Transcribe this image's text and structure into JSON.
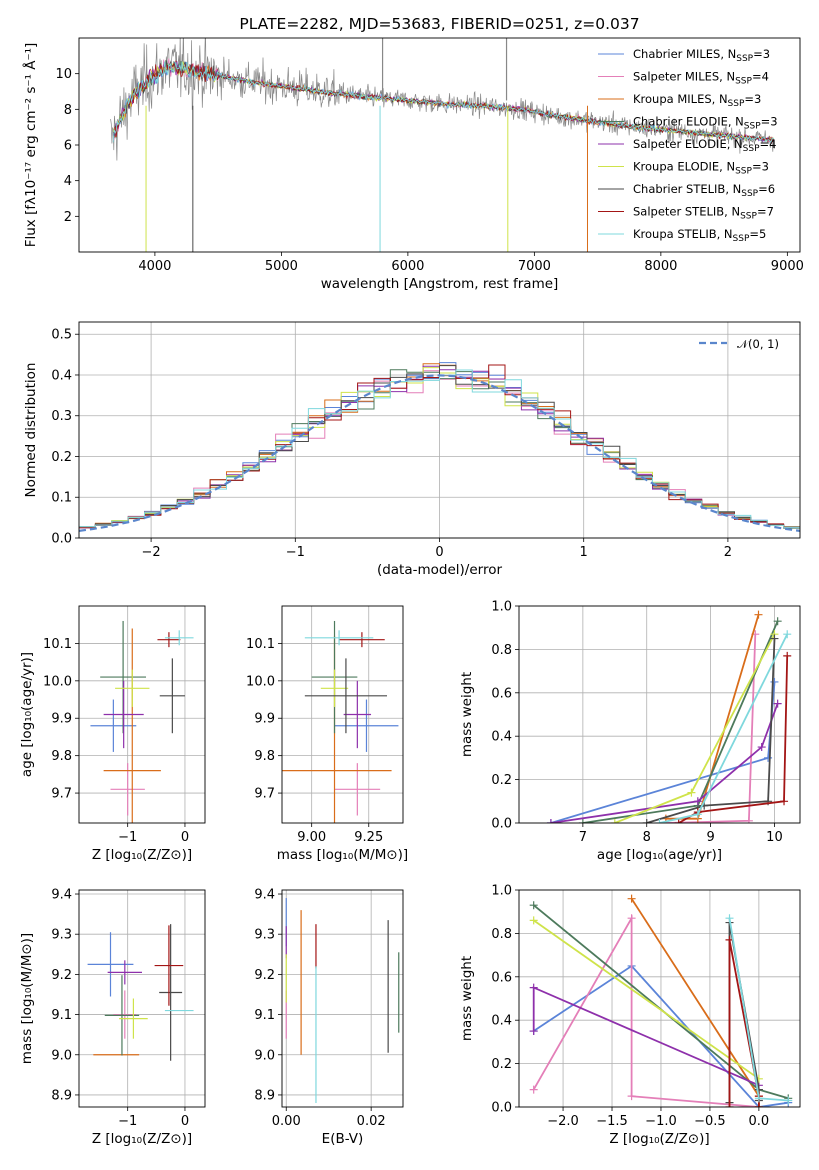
{
  "colors": {
    "series": [
      "#5b84d8",
      "#e47fb8",
      "#d96d1a",
      "#4d7a5c",
      "#8e30ab",
      "#cfe34a",
      "#4a4a4a",
      "#a31515",
      "#7fd8dd"
    ],
    "data": "#888888",
    "normal": "#5a86cc",
    "grid": "#b0b0b0"
  },
  "chart_data": [
    {
      "id": "spectrum",
      "type": "line",
      "title": "PLATE=2282, MJD=53683, FIBERID=0251, z=0.037",
      "xlabel": "wavelength [Angstrom, rest frame]",
      "ylabel": "Flux [fλ10⁻¹⁷ erg cm⁻² s⁻¹ Å⁻¹]",
      "xlim": [
        3400,
        9100
      ],
      "ylim": [
        0,
        12
      ],
      "xticks": [
        4000,
        5000,
        6000,
        7000,
        8000,
        9000
      ],
      "yticks": [
        2,
        4,
        6,
        8,
        10
      ],
      "grid": false,
      "legend_position": "top-right",
      "data_range": [
        3650,
        8900
      ],
      "continuum": [
        [
          3650,
          6.2
        ],
        [
          3800,
          8.5
        ],
        [
          3950,
          9.7
        ],
        [
          4100,
          10.4
        ],
        [
          4300,
          10.2
        ],
        [
          4500,
          9.9
        ],
        [
          4800,
          9.5
        ],
        [
          5100,
          9.2
        ],
        [
          5400,
          8.9
        ],
        [
          5700,
          8.7
        ],
        [
          6000,
          8.5
        ],
        [
          6300,
          8.3
        ],
        [
          6600,
          8.2
        ],
        [
          6900,
          8.0
        ],
        [
          7200,
          7.6
        ],
        [
          7500,
          7.3
        ],
        [
          7800,
          7.0
        ],
        [
          8100,
          6.8
        ],
        [
          8400,
          6.6
        ],
        [
          8700,
          6.4
        ],
        [
          8900,
          6.3
        ]
      ],
      "series": [
        {
          "name": "Chabrier MILES, N_SSP=3",
          "label_main": "Chabrier MILES, N",
          "label_sub": "SSP",
          "label_tail": "=3"
        },
        {
          "name": "Salpeter MILES, N_SSP=4",
          "label_main": "Salpeter MILES, N",
          "label_sub": "SSP",
          "label_tail": "=4"
        },
        {
          "name": "Kroupa MILES, N_SSP=3",
          "label_main": "Kroupa MILES, N",
          "label_sub": "SSP",
          "label_tail": "=3"
        },
        {
          "name": "Chabrier ELODIE, N_SSP=3",
          "label_main": "Chabrier ELODIE, N",
          "label_sub": "SSP",
          "label_tail": "=3"
        },
        {
          "name": "Salpeter ELODIE, N_SSP=4",
          "label_main": "Salpeter ELODIE, N",
          "label_sub": "SSP",
          "label_tail": "=4"
        },
        {
          "name": "Kroupa ELODIE, N_SSP=3",
          "label_main": "Kroupa ELODIE, N",
          "label_sub": "SSP",
          "label_tail": "=3"
        },
        {
          "name": "Chabrier STELIB, N_SSP=6",
          "label_main": "Chabrier STELIB, N",
          "label_sub": "SSP",
          "label_tail": "=6"
        },
        {
          "name": "Salpeter STELIB, N_SSP=7",
          "label_main": "Salpeter STELIB, N",
          "label_sub": "SSP",
          "label_tail": "=7"
        },
        {
          "name": "Kroupa STELIB, N_SSP=5",
          "label_main": "Kroupa STELIB, N",
          "label_sub": "SSP",
          "label_tail": "=5"
        }
      ]
    },
    {
      "id": "residuals",
      "type": "step-histogram",
      "xlabel": "(data-model)/error",
      "ylabel": "Normed distribution",
      "xlim": [
        -2.5,
        2.5
      ],
      "ylim": [
        0,
        0.53
      ],
      "xticks": [
        -2,
        -1,
        0,
        1,
        2
      ],
      "xtick_labels": [
        "−2",
        "−1",
        "0",
        "1",
        "2"
      ],
      "yticks": [
        0.0,
        0.1,
        0.2,
        0.3,
        0.4,
        0.5
      ],
      "ytick_labels": [
        "0.0",
        "0.1",
        "0.2",
        "0.3",
        "0.4",
        "0.5"
      ],
      "grid": true,
      "legend_position": "top-right",
      "normal_label": "𝒩(0, 1)",
      "bin_edges_range": [
        -2.5,
        2.5
      ],
      "n_bins": 44
    },
    {
      "id": "age-vs-z",
      "type": "errorbar",
      "xlabel": "Z [log₁₀(Z/Z⊙)]",
      "ylabel": "age  [log₁₀(age/yr)]",
      "xlim": [
        -1.85,
        0.35
      ],
      "ylim": [
        9.62,
        10.2
      ],
      "xticks": [
        -1,
        0
      ],
      "xtick_labels": [
        "−1",
        "0"
      ],
      "yticks": [
        9.7,
        9.8,
        9.9,
        10.0,
        10.1
      ],
      "ytick_labels": [
        "9.7",
        "9.8",
        "9.9",
        "10.0",
        "10.1"
      ],
      "grid": true,
      "points": [
        {
          "x": -1.25,
          "y": 9.88,
          "xerr": 0.4,
          "yerr": 0.07
        },
        {
          "x": -1.0,
          "y": 9.71,
          "xerr": 0.3,
          "yerr": 0.07
        },
        {
          "x": -0.92,
          "y": 9.76,
          "xerr": 0.5,
          "yerr": 0.38
        },
        {
          "x": -1.08,
          "y": 10.01,
          "xerr": 0.4,
          "yerr": 0.15
        },
        {
          "x": -1.07,
          "y": 9.91,
          "xerr": 0.35,
          "yerr": 0.09
        },
        {
          "x": -0.92,
          "y": 9.98,
          "xerr": 0.3,
          "yerr": 0.05
        },
        {
          "x": -0.22,
          "y": 9.96,
          "xerr": 0.22,
          "yerr": 0.1
        },
        {
          "x": -0.28,
          "y": 10.11,
          "xerr": 0.2,
          "yerr": 0.02
        },
        {
          "x": -0.1,
          "y": 10.115,
          "xerr": 0.25,
          "yerr": 0.02
        }
      ]
    },
    {
      "id": "age-vs-mass",
      "type": "errorbar",
      "xlabel": "mass [log₁₀(M/M⊙)]",
      "ylabel": "",
      "xlim": [
        8.87,
        9.4
      ],
      "ylim": [
        9.62,
        10.2
      ],
      "xticks": [
        9.0,
        9.25
      ],
      "xtick_labels": [
        "9.00",
        "9.25"
      ],
      "yticks": [
        9.7,
        9.8,
        9.9,
        10.0,
        10.1
      ],
      "ytick_labels": [
        "9.7",
        "9.8",
        "9.9",
        "10.0",
        "10.1"
      ],
      "grid": true,
      "points": [
        {
          "x": 9.24,
          "y": 9.88,
          "xerr": 0.14,
          "yerr": 0.07
        },
        {
          "x": 9.2,
          "y": 9.71,
          "xerr": 0.1,
          "yerr": 0.07
        },
        {
          "x": 9.1,
          "y": 9.76,
          "xerr": 0.25,
          "yerr": 0.36
        },
        {
          "x": 9.1,
          "y": 10.01,
          "xerr": 0.1,
          "yerr": 0.15
        },
        {
          "x": 9.2,
          "y": 9.91,
          "xerr": 0.06,
          "yerr": 0.09
        },
        {
          "x": 9.1,
          "y": 9.98,
          "xerr": 0.06,
          "yerr": 0.05
        },
        {
          "x": 9.15,
          "y": 9.96,
          "xerr": 0.18,
          "yerr": 0.1
        },
        {
          "x": 9.22,
          "y": 10.11,
          "xerr": 0.1,
          "yerr": 0.02
        },
        {
          "x": 9.12,
          "y": 10.115,
          "xerr": 0.15,
          "yerr": 0.02
        }
      ]
    },
    {
      "id": "mass-weight-vs-age",
      "type": "line",
      "xlabel": "age  [log₁₀(age/yr)]",
      "ylabel": "mass weight",
      "xlim": [
        6.0,
        10.4
      ],
      "ylim": [
        0,
        1.0
      ],
      "xticks": [
        7,
        8,
        9,
        10
      ],
      "xtick_labels": [
        "7",
        "8",
        "9",
        "10"
      ],
      "yticks": [
        0.0,
        0.2,
        0.4,
        0.6,
        0.8,
        1.0
      ],
      "ytick_labels": [
        "0.0",
        "0.2",
        "0.4",
        "0.6",
        "0.8",
        "1.0"
      ],
      "grid": true,
      "series": [
        {
          "points": [
            [
              6.5,
              0.0
            ],
            [
              9.9,
              0.3
            ],
            [
              10.0,
              0.65
            ]
          ]
        },
        {
          "points": [
            [
              8.3,
              0.0
            ],
            [
              9.6,
              0.01
            ],
            [
              9.7,
              0.87
            ]
          ]
        },
        {
          "points": [
            [
              8.3,
              0.02
            ],
            [
              8.8,
              0.02
            ],
            [
              9.75,
              0.96
            ]
          ]
        },
        {
          "points": [
            [
              7.0,
              0.0
            ],
            [
              8.8,
              0.08
            ],
            [
              10.05,
              0.93
            ]
          ]
        },
        {
          "points": [
            [
              6.5,
              0.0
            ],
            [
              8.8,
              0.1
            ],
            [
              9.8,
              0.35
            ],
            [
              10.05,
              0.55
            ]
          ]
        },
        {
          "points": [
            [
              7.5,
              0.0
            ],
            [
              8.7,
              0.14
            ],
            [
              10.0,
              0.87
            ]
          ]
        },
        {
          "points": [
            [
              8.0,
              0.0
            ],
            [
              8.9,
              0.08
            ],
            [
              9.9,
              0.1
            ],
            [
              10.0,
              0.85
            ]
          ]
        },
        {
          "points": [
            [
              8.5,
              0.0
            ],
            [
              8.8,
              0.05
            ],
            [
              10.15,
              0.1
            ],
            [
              10.2,
              0.77
            ]
          ]
        },
        {
          "points": [
            [
              8.2,
              0.0
            ],
            [
              8.8,
              0.04
            ],
            [
              10.2,
              0.87
            ]
          ]
        }
      ]
    },
    {
      "id": "mass-vs-z",
      "type": "errorbar",
      "xlabel": "Z [log₁₀(Z/Z⊙)]",
      "ylabel": "mass [log₁₀(M/M⊙)]",
      "xlim": [
        -1.85,
        0.35
      ],
      "ylim": [
        8.87,
        9.41
      ],
      "xticks": [
        -1,
        0
      ],
      "xtick_labels": [
        "−1",
        "0"
      ],
      "yticks": [
        8.9,
        9.0,
        9.1,
        9.2,
        9.3,
        9.4
      ],
      "ytick_labels": [
        "8.9",
        "9.0",
        "9.1",
        "9.2",
        "9.3",
        "9.4"
      ],
      "grid": true,
      "points": [
        {
          "x": -1.3,
          "y": 9.225,
          "xerr": 0.4,
          "yerr": 0.08
        },
        {
          "x": -1.05,
          "y": 9.1,
          "xerr": 0.2,
          "yerr": 0.06
        },
        {
          "x": -1.2,
          "y": 9.0,
          "xerr": 0.4,
          "yerr": 0.0
        },
        {
          "x": -1.1,
          "y": 9.098,
          "xerr": 0.3,
          "yerr": 0.1
        },
        {
          "x": -1.05,
          "y": 9.205,
          "xerr": 0.3,
          "yerr": 0.03
        },
        {
          "x": -0.9,
          "y": 9.09,
          "xerr": 0.25,
          "yerr": 0.05
        },
        {
          "x": -0.25,
          "y": 9.155,
          "xerr": 0.2,
          "yerr": 0.17
        },
        {
          "x": -0.28,
          "y": 9.222,
          "xerr": 0.25,
          "yerr": 0.1
        },
        {
          "x": -0.1,
          "y": 9.11,
          "xerr": 0.25,
          "yerr": 0.0
        }
      ]
    },
    {
      "id": "mass-vs-ebv",
      "type": "errorbar",
      "xlabel": "E(B-V)",
      "ylabel": "",
      "xlim": [
        -0.001,
        0.0275
      ],
      "ylim": [
        8.87,
        9.41
      ],
      "xticks": [
        0.0,
        0.02
      ],
      "xtick_labels": [
        "0.00",
        "0.02"
      ],
      "yticks": [
        8.9,
        9.0,
        9.1,
        9.2,
        9.3,
        9.4
      ],
      "ytick_labels": [
        "8.9",
        "9.0",
        "9.1",
        "9.2",
        "9.3",
        "9.4"
      ],
      "grid": true,
      "points": [
        {
          "x": 0.0,
          "y": 9.33,
          "xerr": 0.0,
          "yerr": 0.06
        },
        {
          "x": 0.0,
          "y": 9.1,
          "xerr": 0.0,
          "yerr": 0.06
        },
        {
          "x": 0.0035,
          "y": 9.18,
          "xerr": 0.0,
          "yerr": 0.18
        },
        {
          "x": 0.0265,
          "y": 9.155,
          "xerr": 0.0,
          "yerr": 0.1
        },
        {
          "x": 0.0,
          "y": 9.28,
          "xerr": 0.0,
          "yerr": 0.04
        },
        {
          "x": 0.0,
          "y": 9.19,
          "xerr": 0.0,
          "yerr": 0.06
        },
        {
          "x": 0.024,
          "y": 9.17,
          "xerr": 0.0,
          "yerr": 0.165
        },
        {
          "x": 0.007,
          "y": 9.27,
          "xerr": 0.0,
          "yerr": 0.055
        },
        {
          "x": 0.007,
          "y": 9.05,
          "xerr": 0.0,
          "yerr": 0.17
        }
      ]
    },
    {
      "id": "mass-weight-vs-z",
      "type": "line",
      "xlabel": "Z [log₁₀(Z/Z⊙)]",
      "ylabel": "mass weight",
      "xlim": [
        -2.45,
        0.42
      ],
      "ylim": [
        0,
        1.0
      ],
      "xticks": [
        -2.0,
        -1.5,
        -1.0,
        -0.5,
        0.0
      ],
      "xtick_labels": [
        "−2.0",
        "−1.5",
        "−1.0",
        "−0.5",
        "0.0"
      ],
      "yticks": [
        0.0,
        0.2,
        0.4,
        0.6,
        0.8,
        1.0
      ],
      "ytick_labels": [
        "0.0",
        "0.2",
        "0.4",
        "0.6",
        "0.8",
        "1.0"
      ],
      "grid": true,
      "series": [
        {
          "points": [
            [
              -2.3,
              0.35
            ],
            [
              -1.3,
              0.65
            ],
            [
              0.0,
              0.0
            ],
            [
              0.3,
              0.02
            ]
          ]
        },
        {
          "points": [
            [
              -2.3,
              0.08
            ],
            [
              -1.3,
              0.87
            ],
            [
              -1.3,
              0.05
            ],
            [
              0.0,
              0.0
            ]
          ]
        },
        {
          "points": [
            [
              -1.3,
              0.96
            ],
            [
              0.0,
              0.05
            ],
            [
              0.0,
              0.0
            ]
          ]
        },
        {
          "points": [
            [
              -2.3,
              0.93
            ],
            [
              0.0,
              0.08
            ],
            [
              0.3,
              0.04
            ]
          ]
        },
        {
          "points": [
            [
              -2.3,
              0.35
            ],
            [
              -2.3,
              0.55
            ],
            [
              0.0,
              0.1
            ]
          ]
        },
        {
          "points": [
            [
              -2.3,
              0.86
            ],
            [
              0.0,
              0.13
            ]
          ]
        },
        {
          "points": [
            [
              -0.3,
              0.02
            ],
            [
              -0.3,
              0.85
            ],
            [
              0.0,
              0.08
            ],
            [
              0.0,
              0.03
            ]
          ]
        },
        {
          "points": [
            [
              -0.3,
              0.0
            ],
            [
              -0.3,
              0.77
            ],
            [
              0.0,
              0.05
            ],
            [
              0.0,
              0.0
            ]
          ]
        },
        {
          "points": [
            [
              -0.3,
              0.87
            ],
            [
              0.0,
              0.04
            ],
            [
              0.3,
              0.03
            ]
          ]
        }
      ]
    }
  ]
}
